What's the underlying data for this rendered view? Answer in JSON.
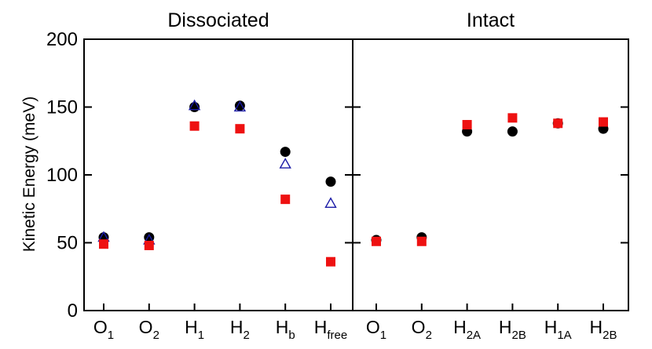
{
  "chart_data": {
    "type": "scatter",
    "ylabel": "Kinetic Energy (meV)",
    "ylim": [
      0,
      200
    ],
    "yticks": [
      0,
      50,
      100,
      150,
      200
    ],
    "colors": {
      "circle": "#000000",
      "triangle": "#1a1aa6",
      "square": "#ee1111"
    },
    "panels": [
      {
        "title": "Dissociated",
        "categories": [
          {
            "base": "O",
            "sub": "1"
          },
          {
            "base": "O",
            "sub": "2"
          },
          {
            "base": "H",
            "sub": "1"
          },
          {
            "base": "H",
            "sub": "2"
          },
          {
            "base": "H",
            "sub": "b"
          },
          {
            "base": "H",
            "sub": "free"
          }
        ],
        "series": [
          {
            "marker": "circle",
            "values": [
              54,
              54,
              150,
              151,
              117,
              95
            ]
          },
          {
            "marker": "triangle",
            "values": [
              54,
              52,
              151,
              150,
              108,
              79
            ]
          },
          {
            "marker": "square",
            "values": [
              49,
              48,
              136,
              134,
              82,
              36
            ]
          }
        ]
      },
      {
        "title": "Intact",
        "categories": [
          {
            "base": "O",
            "sub": "1"
          },
          {
            "base": "O",
            "sub": "2"
          },
          {
            "base": "H",
            "sub": "2A"
          },
          {
            "base": "H",
            "sub": "2B"
          },
          {
            "base": "H",
            "sub": "1A"
          },
          {
            "base": "H",
            "sub": "2B"
          }
        ],
        "series": [
          {
            "marker": "circle",
            "values": [
              52,
              54,
              132,
              132,
              138,
              134
            ]
          },
          {
            "marker": "square",
            "values": [
              51,
              51,
              137,
              142,
              138,
              139
            ]
          }
        ]
      }
    ]
  }
}
